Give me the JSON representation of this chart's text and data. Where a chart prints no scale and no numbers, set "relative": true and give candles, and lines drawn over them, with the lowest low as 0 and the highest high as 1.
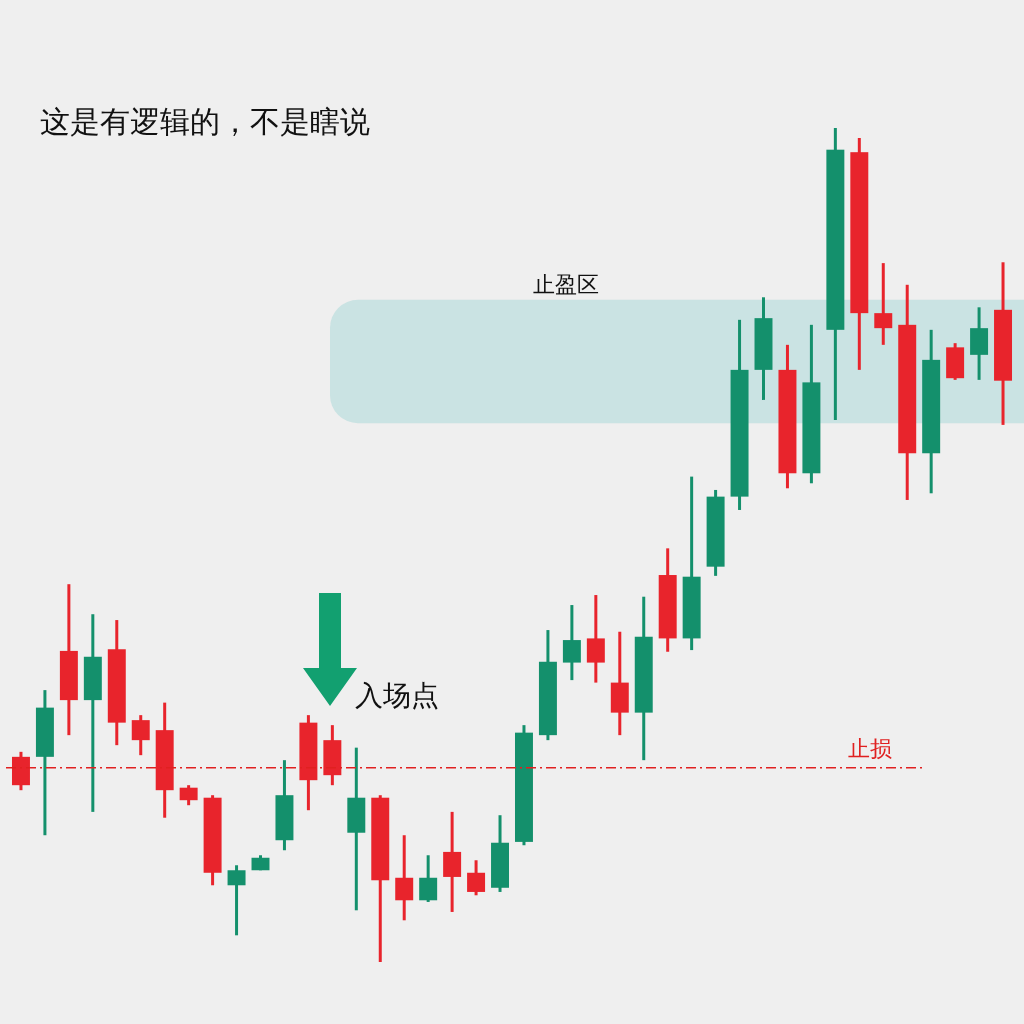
{
  "chart_data": {
    "type": "candlestick",
    "title": "这是有逻辑的，不是瞎说",
    "relative": true,
    "categories": [
      null,
      null,
      null,
      null,
      null,
      null,
      null,
      null,
      null,
      null,
      null,
      null,
      null,
      null,
      null,
      null,
      null,
      null,
      null,
      null,
      null,
      null,
      null,
      null,
      null,
      null,
      null,
      null,
      null,
      null,
      null,
      null,
      null,
      null,
      null,
      null,
      null,
      null,
      null,
      null,
      null,
      null
    ],
    "ohlc": [
      [
        0.246,
        0.252,
        0.206,
        0.212
      ],
      [
        0.246,
        0.326,
        0.152,
        0.305
      ],
      [
        0.373,
        0.453,
        0.272,
        0.314
      ],
      [
        0.314,
        0.417,
        0.18,
        0.366
      ],
      [
        0.375,
        0.41,
        0.26,
        0.287
      ],
      [
        0.29,
        0.296,
        0.248,
        0.266
      ],
      [
        0.278,
        0.311,
        0.173,
        0.206
      ],
      [
        0.209,
        0.212,
        0.188,
        0.194
      ],
      [
        0.197,
        0.2,
        0.092,
        0.107
      ],
      [
        0.092,
        0.116,
        0.032,
        0.11
      ],
      [
        0.11,
        0.128,
        0.11,
        0.125
      ],
      [
        0.146,
        0.242,
        0.134,
        0.2
      ],
      [
        0.287,
        0.296,
        0.182,
        0.218
      ],
      [
        0.266,
        0.284,
        0.212,
        0.224
      ],
      [
        0.155,
        0.257,
        0.062,
        0.197
      ],
      [
        0.197,
        0.2,
        0,
        0.098
      ],
      [
        0.101,
        0.152,
        0.05,
        0.074
      ],
      [
        0.074,
        0.128,
        0.072,
        0.101
      ],
      [
        0.132,
        0.18,
        0.06,
        0.102
      ],
      [
        0.107,
        0.122,
        0.08,
        0.084
      ],
      [
        0.089,
        0.176,
        0.084,
        0.143
      ],
      [
        0.144,
        0.284,
        0.14,
        0.275
      ],
      [
        0.272,
        0.398,
        0.266,
        0.36
      ],
      [
        0.359,
        0.428,
        0.338,
        0.386
      ],
      [
        0.388,
        0.44,
        0.335,
        0.359
      ],
      [
        0.335,
        0.396,
        0.272,
        0.299
      ],
      [
        0.299,
        0.438,
        0.242,
        0.39
      ],
      [
        0.464,
        0.496,
        0.372,
        0.388
      ],
      [
        0.388,
        0.582,
        0.374,
        0.462
      ],
      [
        0.474,
        0.566,
        0.463,
        0.558
      ],
      [
        0.558,
        0.77,
        0.542,
        0.71
      ],
      [
        0.71,
        0.797,
        0.674,
        0.772
      ],
      [
        0.71,
        0.74,
        0.568,
        0.586
      ],
      [
        0.586,
        0.764,
        0.574,
        0.695
      ],
      [
        0.758,
        1,
        0.65,
        0.974
      ],
      [
        0.971,
        0.988,
        0.71,
        0.778
      ],
      [
        0.778,
        0.838,
        0.74,
        0.76
      ],
      [
        0.764,
        0.812,
        0.554,
        0.61
      ],
      [
        0.61,
        0.758,
        0.562,
        0.722
      ],
      [
        0.737,
        0.742,
        0.698,
        0.7
      ],
      [
        0.728,
        0.785,
        0.698,
        0.76
      ],
      [
        0.782,
        0.839,
        0.644,
        0.697
      ]
    ],
    "colors": [
      "#e8242c",
      "#14906c",
      "#e8242c",
      "#14906c",
      "#e8242c",
      "#e8242c",
      "#e8242c",
      "#e8242c",
      "#e8242c",
      "#14906c",
      "#14906c",
      "#14906c",
      "#e8242c",
      "#e8242c",
      "#14906c",
      "#e8242c",
      "#e8242c",
      "#14906c",
      "#e8242c",
      "#e8242c",
      "#14906c",
      "#14906c",
      "#14906c",
      "#14906c",
      "#e8242c",
      "#e8242c",
      "#14906c",
      "#e8242c",
      "#14906c",
      "#14906c",
      "#14906c",
      "#14906c",
      "#e8242c",
      "#14906c",
      "#14906c",
      "#e8242c",
      "#e8242c",
      "#e8242c",
      "#14906c",
      "#e8242c",
      "#14906c",
      "#e8242c"
    ],
    "bands": [
      {
        "axis": "y",
        "from": 0.646,
        "to": 0.794,
        "label": "止盈区",
        "color": "#c5e1e1"
      }
    ],
    "ref_lines": [
      {
        "axis": "y",
        "value": 0.233,
        "label": "止损",
        "color": "#e02020",
        "line_style": "dashed"
      }
    ],
    "annotations": [
      "入场点"
    ]
  }
}
